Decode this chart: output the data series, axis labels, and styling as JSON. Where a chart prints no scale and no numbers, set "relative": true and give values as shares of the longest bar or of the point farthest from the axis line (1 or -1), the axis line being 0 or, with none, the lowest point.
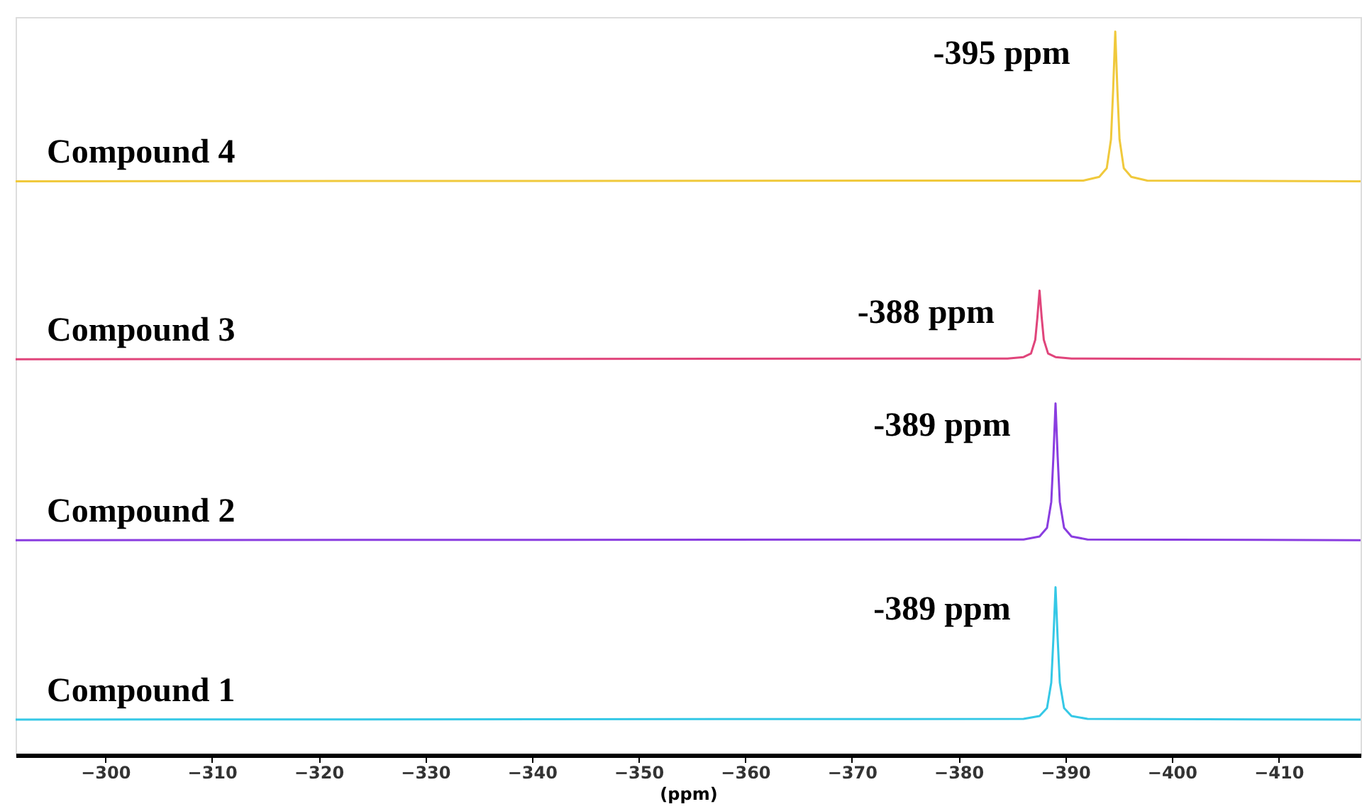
{
  "chart_data": {
    "type": "line",
    "xlabel": "(ppm)",
    "relative": true,
    "xlim": [
      -291.6,
      -417.7
    ],
    "xticks": [
      -300,
      -310,
      -320,
      -330,
      -340,
      -350,
      -360,
      -370,
      -380,
      -390,
      -400,
      -410
    ],
    "grid": false,
    "legend": false,
    "marker": "none",
    "line_style": "solid",
    "tick_labels": "x",
    "series": [
      {
        "name": "Compound 4",
        "color": "#f0c93c",
        "x": [
          -291.6,
          -391.7,
          -393.2,
          -393.9,
          -394.3,
          -394.5,
          -394.7,
          -394.9,
          -395.1,
          -395.5,
          -396.2,
          -397.7,
          -417.7
        ],
        "values": [
          0.793,
          0.794,
          0.799,
          0.811,
          0.851,
          0.919,
          1.0,
          0.919,
          0.851,
          0.811,
          0.799,
          0.794,
          0.793
        ]
      },
      {
        "name": "Compound 3",
        "color": "#e0457b",
        "x": [
          -291.6,
          -384.6,
          -386.1,
          -386.8,
          -387.2,
          -387.4,
          -387.6,
          -387.8,
          -388.0,
          -388.4,
          -389.1,
          -390.6,
          -417.7
        ],
        "values": [
          0.547,
          0.548,
          0.55,
          0.555,
          0.574,
          0.605,
          0.642,
          0.605,
          0.574,
          0.555,
          0.55,
          0.548,
          0.547
        ]
      },
      {
        "name": "Compound 2",
        "color": "#8a3de0",
        "x": [
          -291.6,
          -386.1,
          -387.6,
          -388.3,
          -388.7,
          -388.9,
          -389.1,
          -389.3,
          -389.5,
          -389.9,
          -390.6,
          -392.1,
          -417.7
        ],
        "values": [
          0.297,
          0.298,
          0.302,
          0.314,
          0.35,
          0.412,
          0.486,
          0.412,
          0.35,
          0.314,
          0.302,
          0.298,
          0.297
        ]
      },
      {
        "name": "Compound 1",
        "color": "#35c8e6",
        "x": [
          -291.6,
          -386.1,
          -387.6,
          -388.3,
          -388.7,
          -388.9,
          -389.1,
          -389.3,
          -389.5,
          -389.9,
          -390.6,
          -392.1,
          -417.7
        ],
        "values": [
          0.049,
          0.05,
          0.054,
          0.065,
          0.1,
          0.161,
          0.232,
          0.161,
          0.1,
          0.065,
          0.054,
          0.05,
          0.049
        ]
      }
    ],
    "annotations": [
      {
        "text": "-395 ppm",
        "x": -394.7,
        "y": 1.0
      },
      {
        "text": "-388 ppm",
        "x": -387.6,
        "y": 0.642
      },
      {
        "text": "-389 ppm",
        "x": -389.1,
        "y": 0.486
      },
      {
        "text": "-389 ppm",
        "x": -389.1,
        "y": 0.232
      }
    ]
  }
}
